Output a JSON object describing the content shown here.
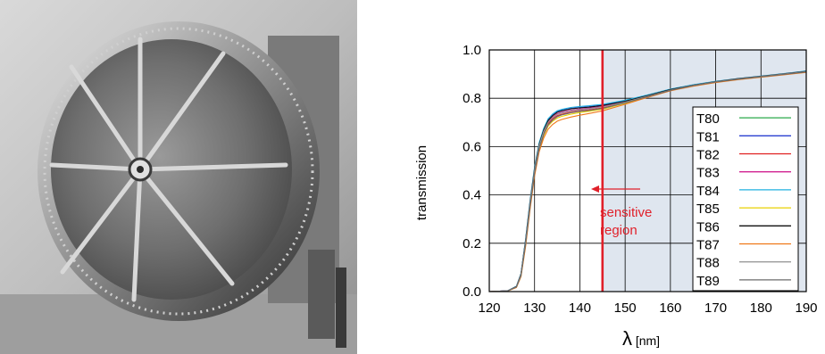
{
  "photo": {
    "subject": "large circular window frame with radial spokes"
  },
  "chart_data": {
    "type": "line",
    "xlabel": "λ [nm]",
    "ylabel": "transmission",
    "xlim": [
      120,
      190
    ],
    "ylim": [
      0.0,
      1.0
    ],
    "x_ticks": [
      120,
      130,
      140,
      150,
      160,
      170,
      180,
      190
    ],
    "y_ticks": [
      "0.0",
      "0.2",
      "0.4",
      "0.6",
      "0.8",
      "1.0"
    ],
    "grid": true,
    "legend_position": "bottom-right",
    "sensitive_threshold_nm": 145,
    "shaded_region_nm": [
      145,
      190
    ],
    "annotation": {
      "line1": "sensitive",
      "line2": "region"
    },
    "series": [
      {
        "name": "T80",
        "color": "#2aa84a",
        "x": [
          120,
          124,
          126,
          127,
          128,
          129,
          130,
          131,
          132,
          133,
          134,
          135,
          136,
          138,
          140,
          142,
          145,
          150,
          155,
          160,
          165,
          170,
          175,
          180,
          185,
          190
        ],
        "y": [
          0,
          0.003,
          0.02,
          0.07,
          0.2,
          0.36,
          0.5,
          0.6,
          0.66,
          0.7,
          0.72,
          0.735,
          0.74,
          0.75,
          0.755,
          0.758,
          0.765,
          0.785,
          0.81,
          0.835,
          0.853,
          0.868,
          0.88,
          0.89,
          0.9,
          0.91
        ]
      },
      {
        "name": "T81",
        "color": "#2a3fd0",
        "x": [
          120,
          124,
          126,
          127,
          128,
          129,
          130,
          131,
          132,
          133,
          134,
          135,
          136,
          138,
          140,
          142,
          145,
          150,
          155,
          160,
          165,
          170,
          175,
          180,
          185,
          190
        ],
        "y": [
          0,
          0.003,
          0.021,
          0.072,
          0.21,
          0.37,
          0.51,
          0.61,
          0.67,
          0.71,
          0.73,
          0.745,
          0.75,
          0.758,
          0.762,
          0.765,
          0.772,
          0.79,
          0.812,
          0.837,
          0.855,
          0.869,
          0.881,
          0.891,
          0.901,
          0.912
        ]
      },
      {
        "name": "T82",
        "color": "#e02020",
        "x": [
          120,
          124,
          126,
          127,
          128,
          129,
          130,
          131,
          132,
          133,
          134,
          135,
          136,
          138,
          140,
          142,
          145,
          150,
          155,
          160,
          165,
          170,
          175,
          180,
          185,
          190
        ],
        "y": [
          0,
          0.003,
          0.019,
          0.068,
          0.2,
          0.355,
          0.495,
          0.595,
          0.655,
          0.695,
          0.715,
          0.728,
          0.734,
          0.742,
          0.748,
          0.752,
          0.76,
          0.782,
          0.808,
          0.833,
          0.852,
          0.867,
          0.879,
          0.889,
          0.899,
          0.909
        ]
      },
      {
        "name": "T83",
        "color": "#d02090",
        "x": [
          120,
          124,
          126,
          127,
          128,
          129,
          130,
          131,
          132,
          133,
          134,
          135,
          136,
          138,
          140,
          142,
          145,
          150,
          155,
          160,
          165,
          170,
          175,
          180,
          185,
          190
        ],
        "y": [
          0,
          0.003,
          0.02,
          0.07,
          0.205,
          0.36,
          0.5,
          0.6,
          0.662,
          0.702,
          0.722,
          0.736,
          0.742,
          0.75,
          0.755,
          0.759,
          0.766,
          0.786,
          0.81,
          0.835,
          0.853,
          0.868,
          0.88,
          0.89,
          0.9,
          0.91
        ]
      },
      {
        "name": "T84",
        "color": "#20b0e0",
        "x": [
          120,
          124,
          126,
          127,
          128,
          129,
          130,
          131,
          132,
          133,
          134,
          135,
          136,
          138,
          140,
          142,
          145,
          150,
          155,
          160,
          165,
          170,
          175,
          180,
          185,
          190
        ],
        "y": [
          0,
          0.003,
          0.022,
          0.075,
          0.215,
          0.375,
          0.515,
          0.615,
          0.675,
          0.715,
          0.735,
          0.748,
          0.754,
          0.762,
          0.766,
          0.769,
          0.775,
          0.792,
          0.814,
          0.838,
          0.856,
          0.87,
          0.882,
          0.892,
          0.902,
          0.913
        ]
      },
      {
        "name": "T85",
        "color": "#e8d000",
        "x": [
          120,
          124,
          126,
          127,
          128,
          129,
          130,
          131,
          132,
          133,
          134,
          135,
          136,
          138,
          140,
          142,
          145,
          150,
          155,
          160,
          165,
          170,
          175,
          180,
          185,
          190
        ],
        "y": [
          0,
          0.002,
          0.018,
          0.064,
          0.19,
          0.345,
          0.485,
          0.585,
          0.645,
          0.685,
          0.705,
          0.718,
          0.725,
          0.734,
          0.741,
          0.746,
          0.755,
          0.779,
          0.806,
          0.832,
          0.851,
          0.866,
          0.878,
          0.888,
          0.898,
          0.908
        ]
      },
      {
        "name": "T86",
        "color": "#111111",
        "x": [
          120,
          124,
          126,
          127,
          128,
          129,
          130,
          131,
          132,
          133,
          134,
          135,
          136,
          138,
          140,
          142,
          145,
          150,
          155,
          160,
          165,
          170,
          175,
          180,
          185,
          190
        ],
        "y": [
          0,
          0.003,
          0.021,
          0.073,
          0.21,
          0.368,
          0.508,
          0.608,
          0.668,
          0.708,
          0.728,
          0.742,
          0.748,
          0.756,
          0.76,
          0.763,
          0.77,
          0.788,
          0.811,
          0.836,
          0.854,
          0.869,
          0.881,
          0.891,
          0.901,
          0.911
        ]
      },
      {
        "name": "T87",
        "color": "#f07818",
        "x": [
          120,
          124,
          126,
          127,
          128,
          129,
          130,
          131,
          132,
          133,
          134,
          135,
          136,
          138,
          140,
          142,
          145,
          150,
          155,
          160,
          165,
          170,
          175,
          180,
          185,
          190
        ],
        "y": [
          0,
          0.002,
          0.017,
          0.062,
          0.185,
          0.338,
          0.478,
          0.578,
          0.635,
          0.672,
          0.692,
          0.705,
          0.712,
          0.722,
          0.73,
          0.737,
          0.748,
          0.775,
          0.804,
          0.831,
          0.85,
          0.865,
          0.877,
          0.887,
          0.897,
          0.907
        ]
      },
      {
        "name": "T88",
        "color": "#9a9a9a",
        "x": [
          120,
          124,
          126,
          127,
          128,
          129,
          130,
          131,
          132,
          133,
          134,
          135,
          136,
          138,
          140,
          142,
          145,
          150,
          155,
          160,
          165,
          170,
          175,
          180,
          185,
          190
        ],
        "y": [
          0,
          0.003,
          0.02,
          0.071,
          0.205,
          0.362,
          0.502,
          0.602,
          0.662,
          0.7,
          0.72,
          0.733,
          0.739,
          0.747,
          0.752,
          0.756,
          0.764,
          0.784,
          0.809,
          0.834,
          0.853,
          0.868,
          0.88,
          0.89,
          0.9,
          0.91
        ]
      },
      {
        "name": "T89",
        "color": "#6b6b6b",
        "x": [
          120,
          124,
          126,
          127,
          128,
          129,
          130,
          131,
          132,
          133,
          134,
          135,
          136,
          138,
          140,
          142,
          145,
          150,
          155,
          160,
          165,
          170,
          175,
          180,
          185,
          190
        ],
        "y": [
          0,
          0.002,
          0.019,
          0.066,
          0.196,
          0.35,
          0.49,
          0.59,
          0.65,
          0.69,
          0.71,
          0.724,
          0.731,
          0.74,
          0.746,
          0.75,
          0.758,
          0.781,
          0.807,
          0.833,
          0.852,
          0.867,
          0.879,
          0.889,
          0.899,
          0.909
        ]
      }
    ]
  }
}
